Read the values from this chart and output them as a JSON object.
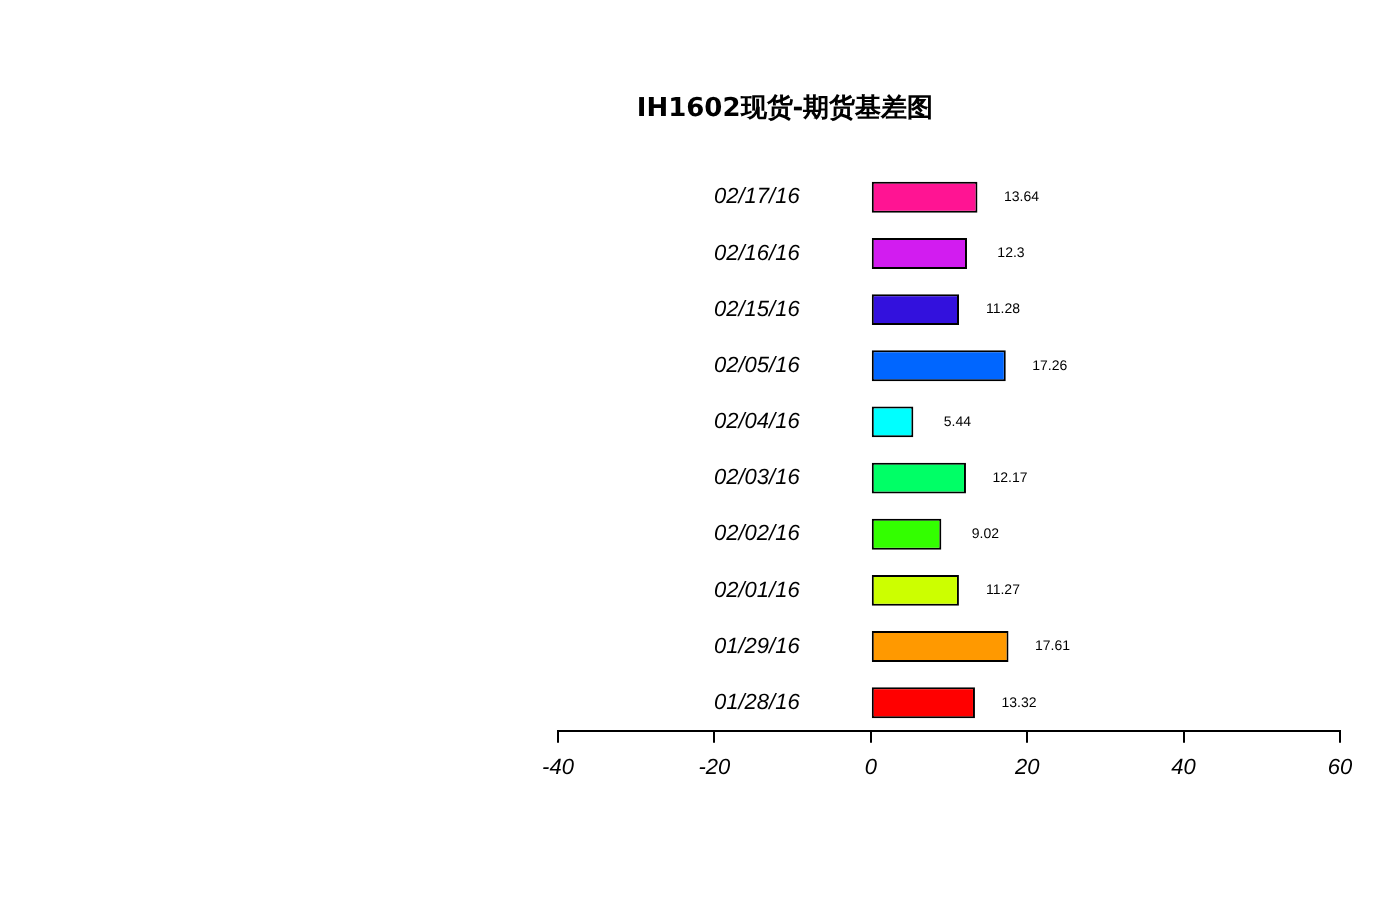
{
  "chart_data": {
    "type": "bar",
    "orientation": "horizontal",
    "title": "IH1602现货-期货基差图",
    "categories": [
      "02/17/16",
      "02/16/16",
      "02/15/16",
      "02/05/16",
      "02/04/16",
      "02/03/16",
      "02/02/16",
      "02/01/16",
      "01/29/16",
      "01/28/16"
    ],
    "values": [
      13.64,
      12.3,
      11.28,
      17.26,
      5.44,
      12.17,
      9.02,
      11.27,
      17.61,
      13.32
    ],
    "colors": [
      "#ff1493",
      "#d21cf0",
      "#3311dd",
      "#0066ff",
      "#00ffff",
      "#00ff66",
      "#33ff00",
      "#ccff00",
      "#ff9900",
      "#ff0000"
    ],
    "xlim": [
      -40,
      60
    ],
    "xticks": [
      -40,
      -20,
      0,
      20,
      40,
      60
    ],
    "data_labels": true,
    "grid": false,
    "legend": false
  }
}
